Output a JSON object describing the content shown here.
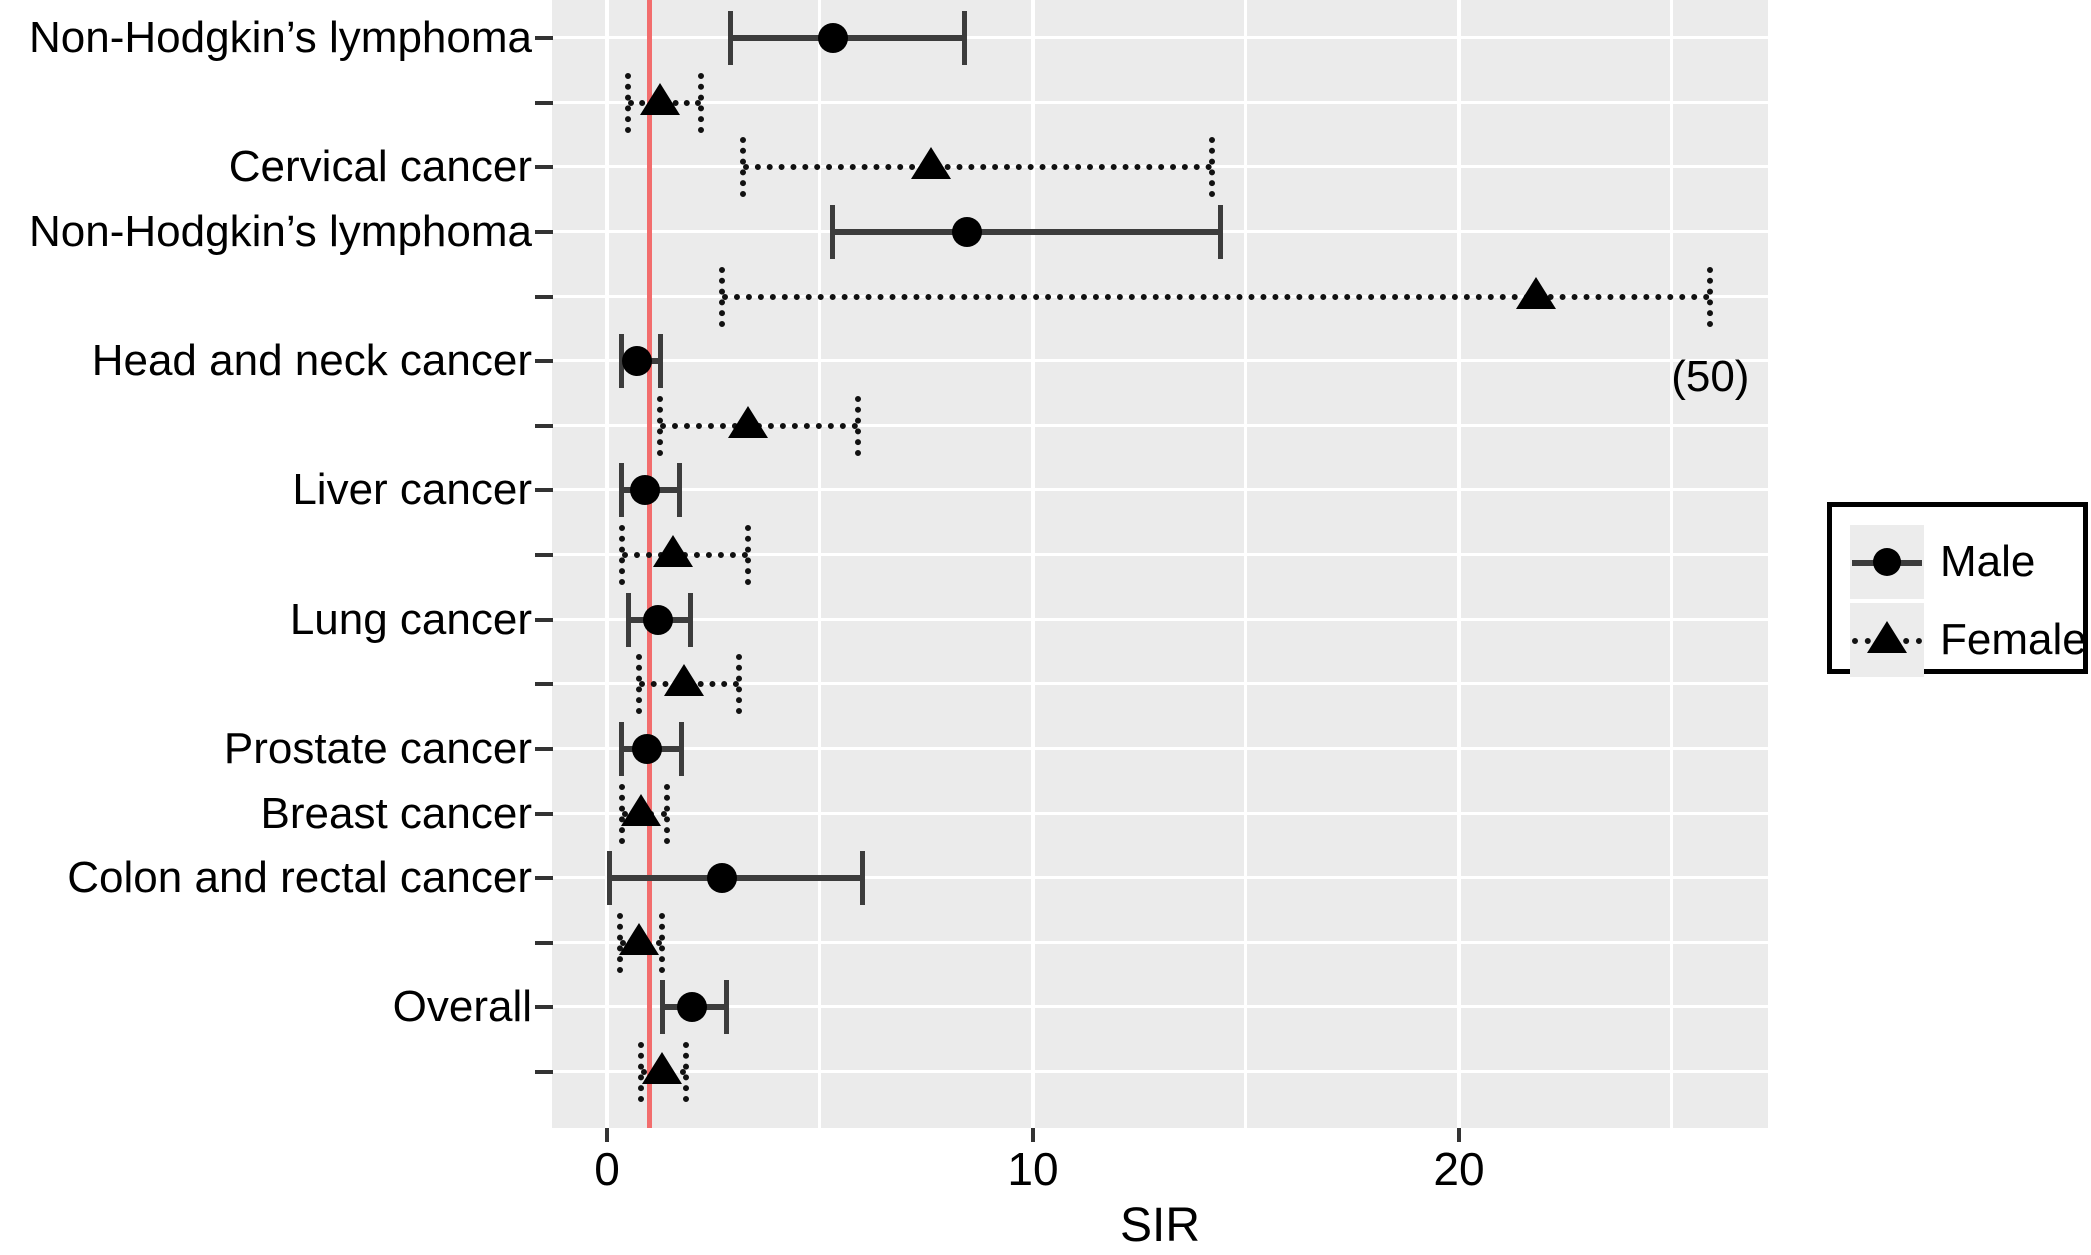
{
  "colors": {
    "panel_background": "#EBEBEB",
    "gridline": "#FFFFFF",
    "reference_line": "#F26D6D",
    "male_line": "#3C3C3C",
    "female_line": "#111111",
    "point": "#000000",
    "axis_text": "#000000"
  },
  "chart_data": {
    "type": "scatter",
    "subtype": "forest-plot-with-error-bars",
    "title": "",
    "xlabel": "SIR",
    "ylabel": "",
    "xlim": [
      -1.3,
      27.3
    ],
    "grid": "on",
    "x_ticks": [
      {
        "value": 0,
        "label": "0"
      },
      {
        "value": 10,
        "label": "10"
      },
      {
        "value": 20,
        "label": "20"
      }
    ],
    "x_gridlines": [
      0,
      5,
      10,
      15,
      20,
      25
    ],
    "reference_line": {
      "value": 1
    },
    "legend": {
      "position": "right",
      "items": [
        {
          "label": "Male",
          "marker": "circle",
          "line": "solid"
        },
        {
          "label": "Female",
          "marker": "triangle",
          "line": "dotted"
        }
      ]
    },
    "rows": [
      {
        "label": "Non-Hodgkin’s lymphoma",
        "series": "Male",
        "sir": 5.3,
        "low": 2.9,
        "high": 8.4,
        "annotation": ""
      },
      {
        "label": "",
        "series": "Female",
        "sir": 1.25,
        "low": 0.5,
        "high": 2.2,
        "annotation": ""
      },
      {
        "label": "Cervical cancer",
        "series": "Female",
        "sir": 7.6,
        "low": 3.2,
        "high": 14.2,
        "annotation": ""
      },
      {
        "label": "Non-Hodgkin’s lymphoma",
        "series": "Male",
        "sir": 8.45,
        "low": 5.3,
        "high": 14.4,
        "annotation": ""
      },
      {
        "label": "",
        "series": "Female",
        "sir": 21.8,
        "low": 2.7,
        "high": 25.9,
        "annotation": "(50)"
      },
      {
        "label": "Head and neck cancer",
        "series": "Male",
        "sir": 0.7,
        "low": 0.35,
        "high": 1.25,
        "annotation": ""
      },
      {
        "label": "",
        "series": "Female",
        "sir": 3.3,
        "low": 1.25,
        "high": 5.9,
        "annotation": ""
      },
      {
        "label": "Liver cancer",
        "series": "Male",
        "sir": 0.9,
        "low": 0.35,
        "high": 1.7,
        "annotation": ""
      },
      {
        "label": "",
        "series": "Female",
        "sir": 1.55,
        "low": 0.35,
        "high": 3.3,
        "annotation": ""
      },
      {
        "label": "Lung cancer",
        "series": "Male",
        "sir": 1.2,
        "low": 0.5,
        "high": 1.95,
        "annotation": ""
      },
      {
        "label": "",
        "series": "Female",
        "sir": 1.8,
        "low": 0.75,
        "high": 3.1,
        "annotation": ""
      },
      {
        "label": "Prostate cancer",
        "series": "Male",
        "sir": 0.95,
        "low": 0.35,
        "high": 1.75,
        "annotation": ""
      },
      {
        "label": "Breast cancer",
        "series": "Female",
        "sir": 0.8,
        "low": 0.35,
        "high": 1.4,
        "annotation": ""
      },
      {
        "label": "Colon and rectal cancer",
        "series": "Male",
        "sir": 2.7,
        "low": 0.05,
        "high": 6.0,
        "annotation": ""
      },
      {
        "label": "",
        "series": "Female",
        "sir": 0.75,
        "low": 0.3,
        "high": 1.3,
        "annotation": ""
      },
      {
        "label": "Overall",
        "series": "Male",
        "sir": 2.0,
        "low": 1.3,
        "high": 2.8,
        "annotation": ""
      },
      {
        "label": "",
        "series": "Female",
        "sir": 1.3,
        "low": 0.8,
        "high": 1.85,
        "annotation": ""
      }
    ]
  }
}
